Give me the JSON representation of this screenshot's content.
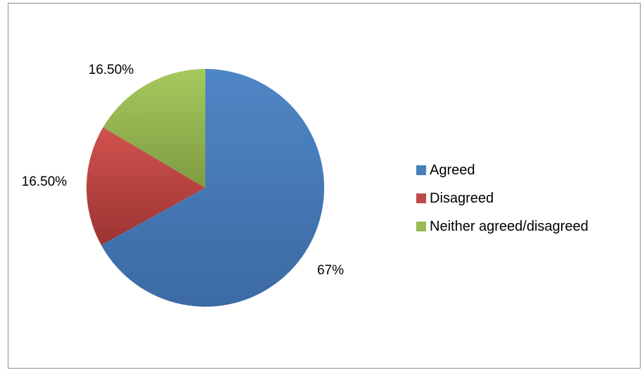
{
  "chart_data": {
    "type": "pie",
    "title": "",
    "categories": [
      "Agreed",
      "Disagreed",
      "Neither agreed/disagreed"
    ],
    "values": [
      67,
      16.5,
      16.5
    ],
    "data_labels": [
      "67%",
      "16.50%",
      "16.50%"
    ],
    "colors": [
      "#4a7ebb",
      "#be4b48",
      "#98b954"
    ],
    "legend": "right"
  }
}
